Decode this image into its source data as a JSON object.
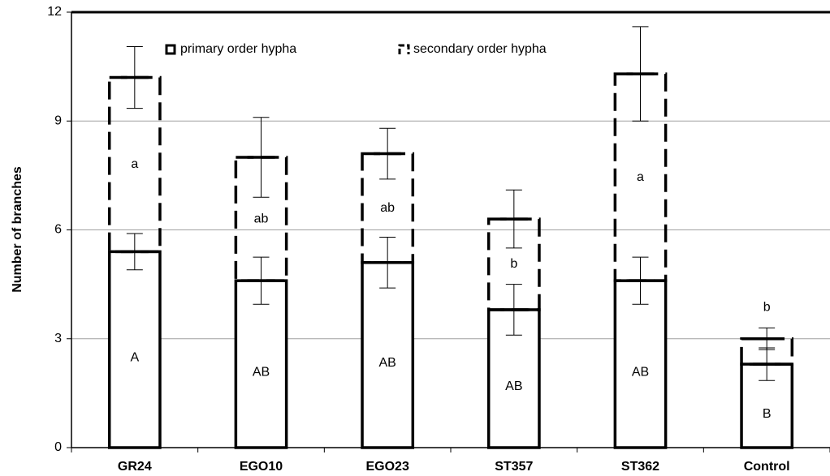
{
  "chart_data": {
    "type": "stacked_bar",
    "y_label": "Number of branches",
    "categories": [
      "GR24",
      "EGO10",
      "EGO23",
      "ST357",
      "ST362",
      "Control"
    ],
    "series": [
      {
        "name": "primary order hypha",
        "color": "#000000",
        "values": [
          5.4,
          4.6,
          5.1,
          3.8,
          4.6,
          2.3
        ],
        "errors": [
          0.5,
          0.65,
          0.7,
          0.7,
          0.65,
          0.45
        ],
        "letters": [
          "A",
          "AB",
          "AB",
          "AB",
          "AB",
          "B"
        ]
      },
      {
        "name": "secondary order hypha",
        "color": "#000000",
        "values": [
          4.8,
          3.4,
          3.0,
          2.5,
          5.7,
          0.7
        ],
        "errors": [
          0.85,
          1.1,
          0.7,
          0.8,
          1.3,
          0.3
        ],
        "letters": [
          "a",
          "ab",
          "ab",
          "b",
          "a",
          "b"
        ]
      }
    ],
    "ylim": [
      0,
      12
    ],
    "yticks": [
      0,
      3,
      6,
      9,
      12
    ],
    "grid": true,
    "legend": "top"
  }
}
